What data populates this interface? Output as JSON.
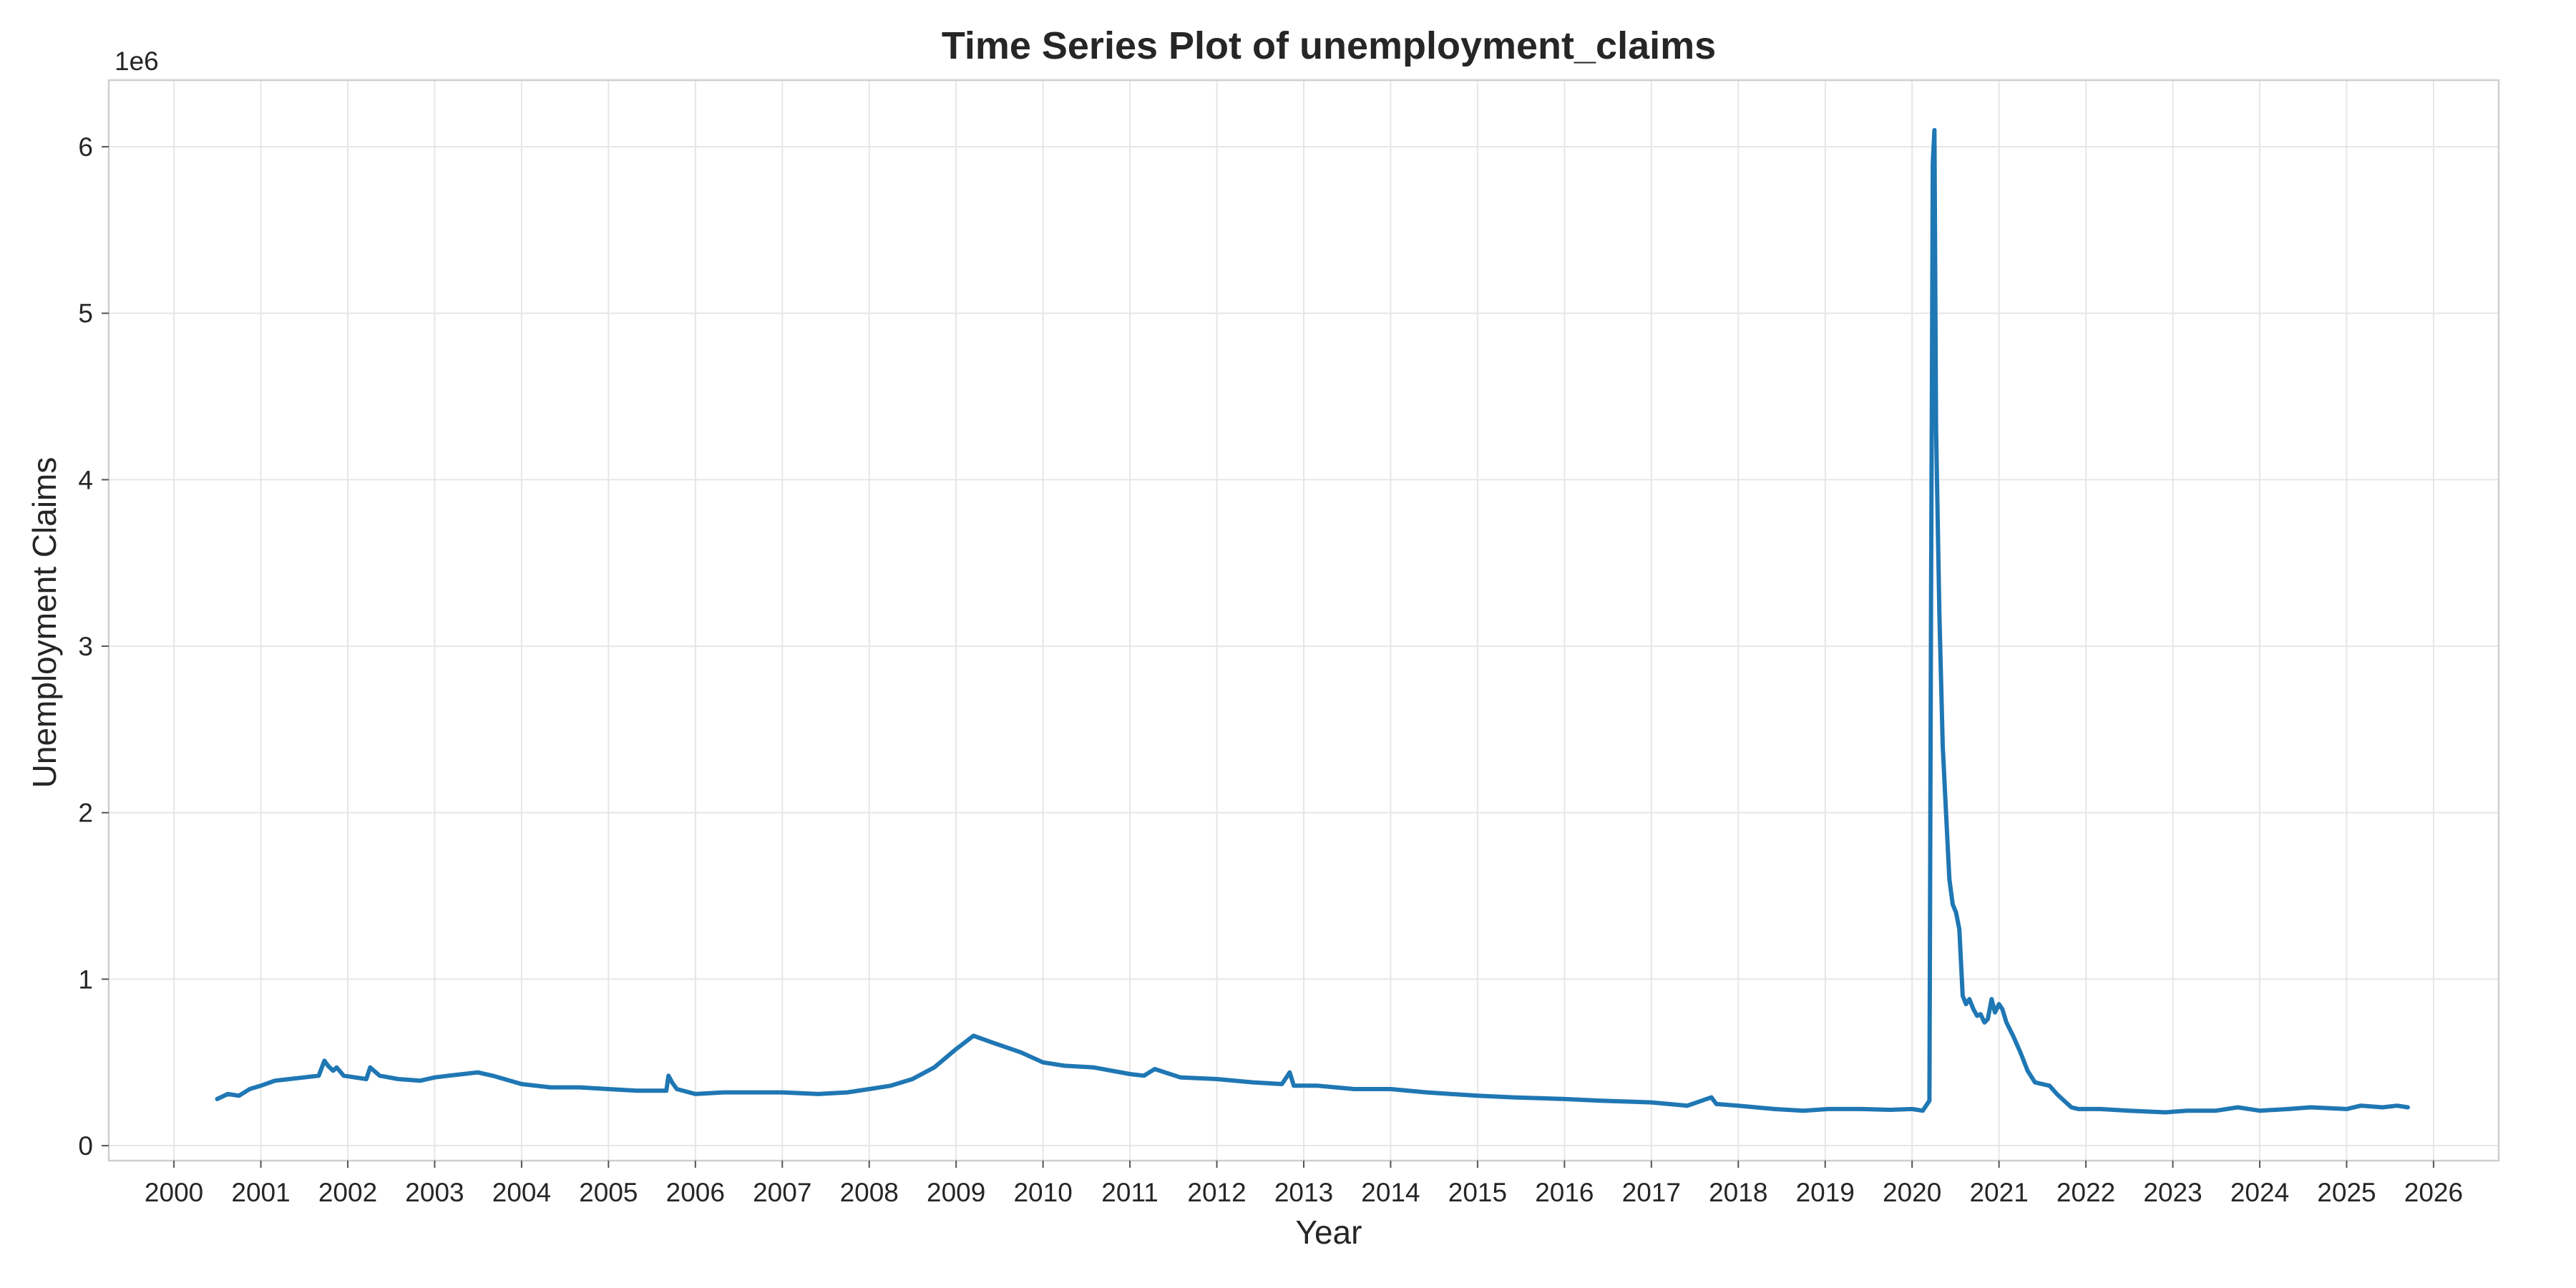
{
  "chart_data": {
    "type": "line",
    "title": "Time Series Plot of unemployment_claims",
    "xlabel": "Year",
    "ylabel": "Unemployment Claims",
    "y_offset_label": "1e6",
    "xlim": [
      "2000-01-01",
      "2026-01-01"
    ],
    "ylim": [
      0,
      6400000
    ],
    "x_ticks": [
      "2000",
      "2001",
      "2002",
      "2003",
      "2004",
      "2005",
      "2006",
      "2007",
      "2008",
      "2009",
      "2010",
      "2011",
      "2012",
      "2013",
      "2014",
      "2015",
      "2016",
      "2017",
      "2018",
      "2019",
      "2020",
      "2021",
      "2022",
      "2023",
      "2024",
      "2025",
      "2026"
    ],
    "y_ticks": [
      0,
      1000000,
      2000000,
      3000000,
      4000000,
      5000000,
      6000000
    ],
    "y_tick_labels": [
      "0",
      "1",
      "2",
      "3",
      "4",
      "5",
      "6"
    ],
    "grid": true,
    "line_color": "#1f77b4",
    "series": [
      {
        "x": [
          "2000-07-01",
          "2000-08-15",
          "2000-10-01",
          "2000-11-15",
          "2001-01-01",
          "2001-03-01",
          "2001-05-01",
          "2001-07-01",
          "2001-09-01",
          "2001-09-25",
          "2001-10-10",
          "2001-11-01",
          "2001-11-15",
          "2001-12-15",
          "2002-02-01",
          "2002-03-20",
          "2002-04-05",
          "2002-05-15",
          "2002-08-01",
          "2002-11-01",
          "2003-01-01",
          "2003-03-01",
          "2003-05-01",
          "2003-07-01",
          "2003-09-01",
          "2004-01-01",
          "2004-05-01",
          "2004-09-01",
          "2005-01-01",
          "2005-05-01",
          "2005-09-01",
          "2005-09-10",
          "2005-09-25",
          "2005-10-15",
          "2006-01-01",
          "2006-05-01",
          "2006-09-01",
          "2007-01-01",
          "2007-06-01",
          "2007-10-01",
          "2008-01-01",
          "2008-04-01",
          "2008-07-01",
          "2008-10-01",
          "2009-01-01",
          "2009-03-15",
          "2009-06-01",
          "2009-10-01",
          "2010-01-01",
          "2010-04-01",
          "2010-08-01",
          "2011-01-01",
          "2011-03-01",
          "2011-04-15",
          "2011-08-01",
          "2012-01-01",
          "2012-06-01",
          "2012-10-01",
          "2012-11-03",
          "2012-11-20",
          "2013-03-01",
          "2013-08-01",
          "2014-01-01",
          "2014-06-01",
          "2015-01-01",
          "2015-06-01",
          "2016-01-01",
          "2016-06-01",
          "2017-01-01",
          "2017-06-01",
          "2017-09-10",
          "2017-10-01",
          "2018-01-01",
          "2018-06-01",
          "2018-10-01",
          "2019-01-15",
          "2019-06-01",
          "2019-10-01",
          "2020-01-01",
          "2020-02-15",
          "2020-03-14",
          "2020-03-21",
          "2020-03-28",
          "2020-04-04",
          "2020-04-11",
          "2020-04-25",
          "2020-05-09",
          "2020-05-23",
          "2020-06-06",
          "2020-06-20",
          "2020-07-04",
          "2020-07-18",
          "2020-08-01",
          "2020-08-15",
          "2020-08-29",
          "2020-09-15",
          "2020-10-01",
          "2020-10-15",
          "2020-11-01",
          "2020-11-15",
          "2020-12-01",
          "2020-12-15",
          "2021-01-01",
          "2021-01-15",
          "2021-02-01",
          "2021-03-01",
          "2021-04-01",
          "2021-05-01",
          "2021-06-01",
          "2021-07-01",
          "2021-08-01",
          "2021-09-01",
          "2021-10-01",
          "2021-11-01",
          "2021-12-01",
          "2022-03-01",
          "2022-07-01",
          "2022-12-01",
          "2023-03-01",
          "2023-07-01",
          "2023-10-01",
          "2024-01-01",
          "2024-05-01",
          "2024-08-01",
          "2025-01-01",
          "2025-03-01",
          "2025-06-01",
          "2025-08-01",
          "2025-09-15"
        ],
        "y": [
          280000,
          310000,
          300000,
          340000,
          360000,
          390000,
          400000,
          410000,
          420000,
          510000,
          480000,
          450000,
          470000,
          420000,
          410000,
          400000,
          470000,
          420000,
          400000,
          390000,
          410000,
          420000,
          430000,
          440000,
          420000,
          370000,
          350000,
          350000,
          340000,
          330000,
          330000,
          420000,
          380000,
          340000,
          310000,
          320000,
          320000,
          320000,
          310000,
          320000,
          340000,
          360000,
          400000,
          470000,
          580000,
          660000,
          620000,
          560000,
          500000,
          480000,
          470000,
          430000,
          420000,
          460000,
          410000,
          400000,
          380000,
          370000,
          440000,
          360000,
          360000,
          340000,
          340000,
          320000,
          300000,
          290000,
          280000,
          270000,
          260000,
          240000,
          290000,
          250000,
          240000,
          220000,
          210000,
          220000,
          220000,
          215000,
          220000,
          210000,
          270000,
          3300000,
          5900000,
          6100000,
          4300000,
          3200000,
          2400000,
          2000000,
          1600000,
          1450000,
          1400000,
          1300000,
          900000,
          850000,
          880000,
          820000,
          780000,
          790000,
          740000,
          760000,
          880000,
          800000,
          850000,
          820000,
          740000,
          660000,
          560000,
          450000,
          380000,
          370000,
          360000,
          310000,
          270000,
          230000,
          220000,
          220000,
          210000,
          200000,
          210000,
          210000,
          230000,
          210000,
          220000,
          230000,
          220000,
          240000,
          230000,
          240000,
          230000
        ],
        "name": ""
      }
    ]
  }
}
